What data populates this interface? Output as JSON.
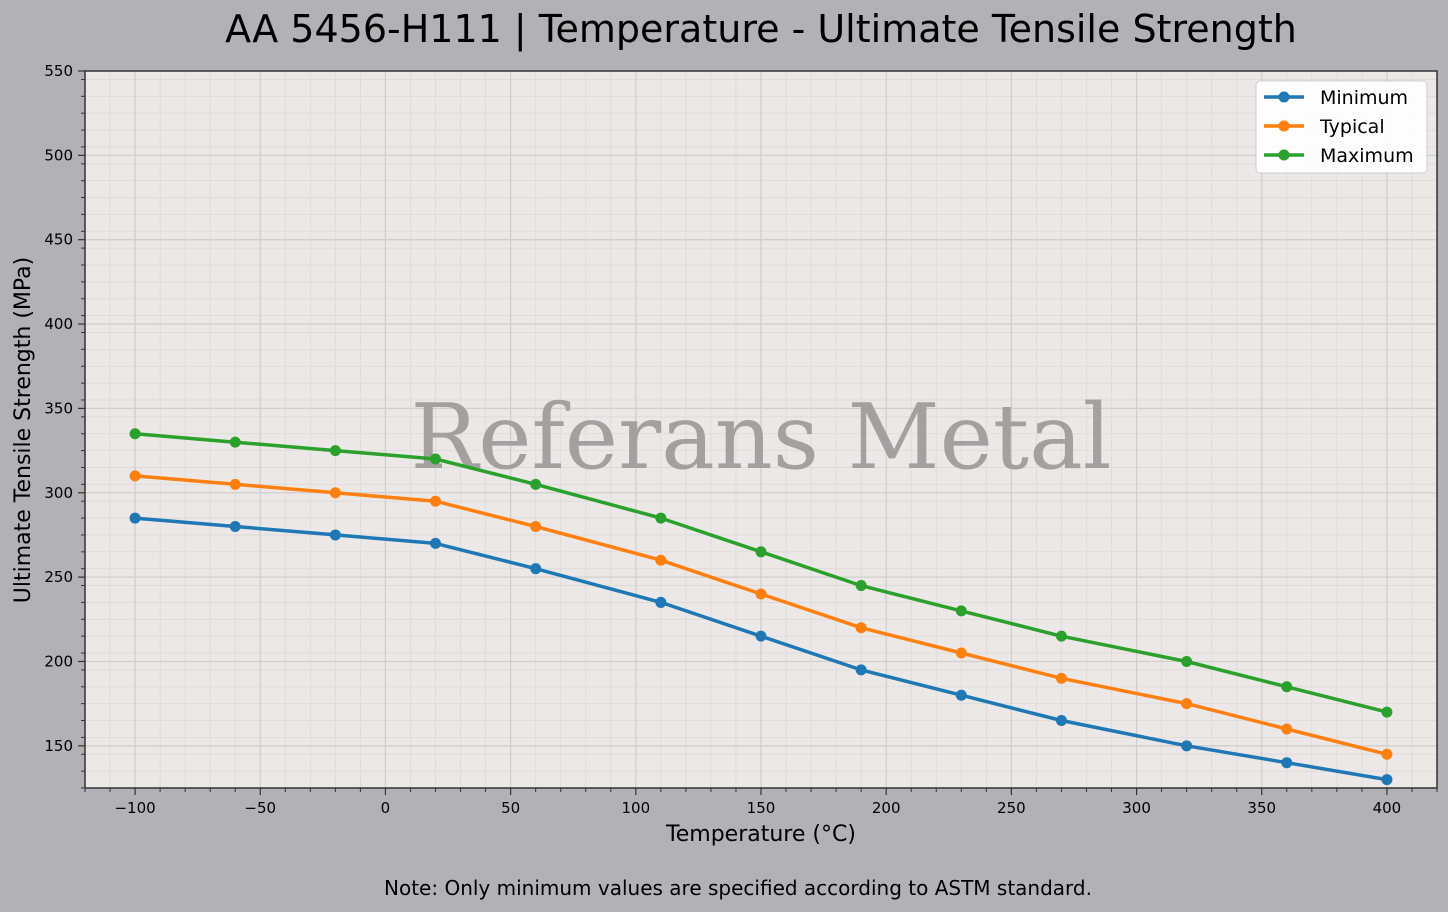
{
  "chart_data": {
    "type": "line",
    "title": "AA 5456-H111 | Temperature - Ultimate Tensile Strength",
    "xlabel": "Temperature (°C)",
    "ylabel": "Ultimate Tensile Strength (MPa)",
    "xlim": [
      -120,
      420
    ],
    "ylim": [
      125,
      550
    ],
    "xticks": [
      -100,
      -50,
      0,
      50,
      100,
      150,
      200,
      250,
      300,
      350,
      400
    ],
    "xtick_labels": [
      "−100",
      "−50",
      "0",
      "50",
      "100",
      "150",
      "200",
      "250",
      "300",
      "350",
      "400"
    ],
    "yticks": [
      150,
      200,
      250,
      300,
      350,
      400,
      450,
      500,
      550
    ],
    "ytick_labels": [
      "150",
      "200",
      "250",
      "300",
      "350",
      "400",
      "450",
      "500",
      "550"
    ],
    "grid": true,
    "legend_position": "top-right",
    "x": [
      -100,
      -60,
      -20,
      20,
      60,
      110,
      150,
      190,
      230,
      270,
      320,
      360,
      400
    ],
    "series": [
      {
        "name": "Minimum",
        "color": "#1f77b4",
        "values": [
          285,
          280,
          275,
          270,
          255,
          235,
          215,
          195,
          180,
          165,
          150,
          140,
          130
        ]
      },
      {
        "name": "Typical",
        "color": "#ff7f0e",
        "values": [
          310,
          305,
          300,
          295,
          280,
          260,
          240,
          220,
          205,
          190,
          175,
          160,
          145
        ]
      },
      {
        "name": "Maximum",
        "color": "#2ca02c",
        "values": [
          335,
          330,
          325,
          320,
          305,
          285,
          265,
          245,
          230,
          215,
          200,
          185,
          170
        ]
      }
    ],
    "watermark": "Referans Metal",
    "note": "Note: Only minimum values are specified according to ASTM standard."
  },
  "colors": {
    "figure_background": "#b1b1b6",
    "plot_background": "#ebe8e7",
    "watermark": "#a3a1a0"
  }
}
